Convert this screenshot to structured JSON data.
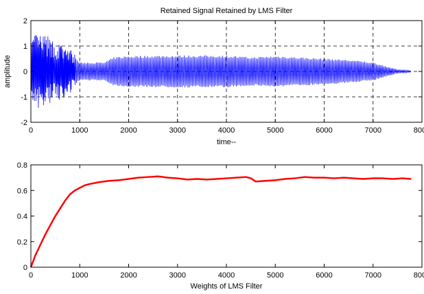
{
  "chart_data": [
    {
      "type": "line",
      "title": "Retained Signal Retained by LMS Filter",
      "xlabel": "time--",
      "ylabel": "amplitude",
      "xlim": [
        0,
        8000
      ],
      "ylim": [
        -2,
        2
      ],
      "xticks": [
        "0",
        "1000",
        "2000",
        "3000",
        "4000",
        "5000",
        "6000",
        "7000",
        "8000"
      ],
      "yticks": [
        "-2",
        "-1",
        "0",
        "1",
        "2"
      ],
      "grid": true,
      "series": [
        {
          "color": "#0000ff",
          "signal": "dense oscillation (~ several hundred cycles)",
          "envelope_x": [
            0,
            100,
            300,
            500,
            800,
            1000,
            1500,
            1700,
            2000,
            3000,
            4000,
            4500,
            5000,
            5500,
            6000,
            6500,
            7000,
            7300,
            7500,
            7780
          ],
          "envelope_amp": [
            1.1,
            1.25,
            1.2,
            1.0,
            0.75,
            0.35,
            0.35,
            0.55,
            0.6,
            0.62,
            0.62,
            0.55,
            0.6,
            0.55,
            0.5,
            0.45,
            0.35,
            0.18,
            0.08,
            0.03
          ]
        }
      ]
    },
    {
      "type": "line",
      "title": "",
      "xlabel": "Weights of LMS Filter",
      "ylabel": "",
      "xlim": [
        0,
        8000
      ],
      "ylim": [
        0,
        0.8
      ],
      "xticks": [
        "0",
        "1000",
        "2000",
        "3000",
        "4000",
        "5000",
        "6000",
        "7000",
        "8000"
      ],
      "yticks": [
        "0",
        "0.2",
        "0.4",
        "0.6",
        "0.8"
      ],
      "grid": false,
      "series": [
        {
          "color": "#ff0000",
          "x": [
            0,
            50,
            100,
            200,
            300,
            400,
            500,
            600,
            700,
            800,
            900,
            1000,
            1100,
            1200,
            1400,
            1600,
            1800,
            2000,
            2200,
            2400,
            2600,
            2800,
            3000,
            3200,
            3400,
            3600,
            3800,
            4000,
            4200,
            4400,
            4500,
            4600,
            4800,
            5000,
            5200,
            5400,
            5600,
            5800,
            6000,
            6200,
            6400,
            6600,
            6800,
            7000,
            7200,
            7400,
            7600,
            7780
          ],
          "y": [
            0.0,
            0.05,
            0.1,
            0.18,
            0.26,
            0.33,
            0.4,
            0.46,
            0.52,
            0.57,
            0.6,
            0.62,
            0.64,
            0.65,
            0.665,
            0.675,
            0.68,
            0.69,
            0.7,
            0.705,
            0.71,
            0.7,
            0.695,
            0.685,
            0.69,
            0.685,
            0.69,
            0.695,
            0.7,
            0.705,
            0.695,
            0.67,
            0.675,
            0.68,
            0.69,
            0.695,
            0.705,
            0.7,
            0.7,
            0.695,
            0.7,
            0.695,
            0.69,
            0.695,
            0.695,
            0.69,
            0.695,
            0.69
          ]
        }
      ]
    }
  ]
}
